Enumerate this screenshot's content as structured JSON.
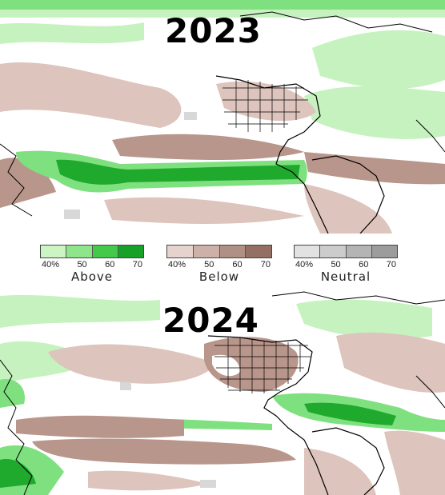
{
  "panels": [
    {
      "year": "2023"
    },
    {
      "year": "2024"
    }
  ],
  "legend": [
    {
      "name": "Above",
      "ticks": [
        "40%",
        "50",
        "60",
        "70"
      ],
      "colors": [
        "#ccf5c4",
        "#8fe68a",
        "#44c94a",
        "#18a128"
      ]
    },
    {
      "name": "Below",
      "ticks": [
        "40%",
        "50",
        "60",
        "70"
      ],
      "colors": [
        "#e6d3cd",
        "#cdb1a8",
        "#b08f84",
        "#946f63"
      ]
    },
    {
      "name": "Neutral",
      "ticks": [
        "40%",
        "50",
        "60",
        "70"
      ],
      "colors": [
        "#e2e2e2",
        "#cccccc",
        "#b4b4b4",
        "#9c9c9c"
      ]
    }
  ],
  "colors": {
    "above_light": "#c6f2bf",
    "above_mid": "#7fe07f",
    "above_strong": "#1faa2e",
    "below_light": "#ddc4bc",
    "below_mid": "#b9968b",
    "neutral": "#d8d8d8",
    "land_line": "#000000"
  }
}
